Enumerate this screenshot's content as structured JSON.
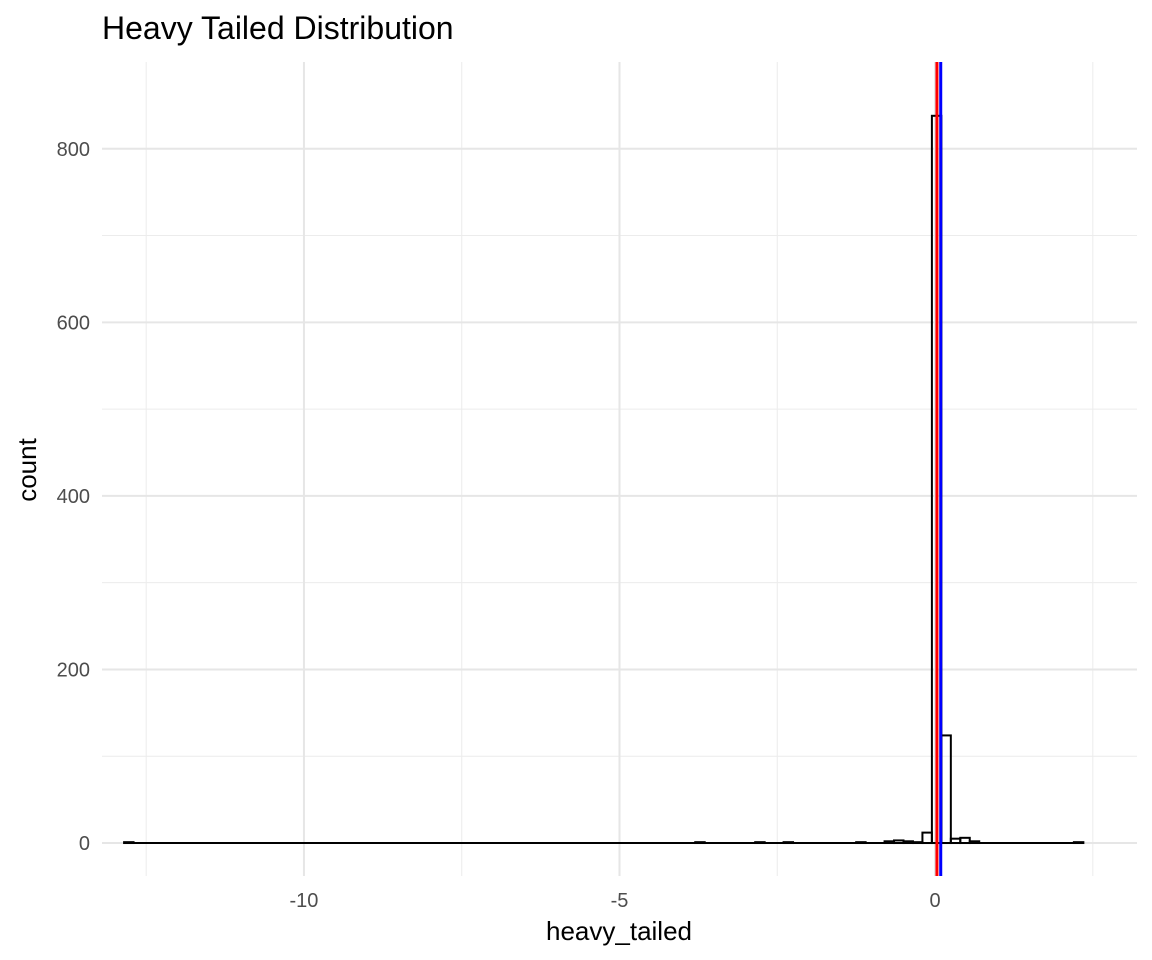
{
  "chart_data": {
    "type": "bar",
    "title": "Heavy Tailed Distribution",
    "xlabel": "heavy_tailed",
    "ylabel": "count",
    "xlim": [
      -13.2,
      3.2
    ],
    "ylim": [
      -38,
      900
    ],
    "x_ticks": [
      -10,
      -5,
      0
    ],
    "x_tick_labels": [
      "-10",
      "-5",
      "0"
    ],
    "x_minor_ticks": [
      -12.5,
      -7.5,
      -2.5,
      2.5
    ],
    "y_ticks": [
      0,
      200,
      400,
      600,
      800
    ],
    "y_tick_labels": [
      "0",
      "200",
      "400",
      "600",
      "800"
    ],
    "y_minor_ticks": [
      100,
      300,
      500,
      700
    ],
    "grid": true,
    "colors": {
      "mean_line": "#ff0000",
      "median_line": "#0000ff",
      "bar_outline": "#000000"
    },
    "reference_lines": [
      {
        "x": 0.09,
        "color": "#0000ff"
      },
      {
        "x": 0.03,
        "color": "#ff0000"
      }
    ],
    "bars": [
      {
        "x0": -12.85,
        "x1": -12.7,
        "count": 1
      },
      {
        "x0": -3.8,
        "x1": -3.65,
        "count": 1
      },
      {
        "x0": -2.85,
        "x1": -2.7,
        "count": 1
      },
      {
        "x0": -2.4,
        "x1": -2.25,
        "count": 1
      },
      {
        "x0": -1.25,
        "x1": -1.1,
        "count": 1
      },
      {
        "x0": -0.8,
        "x1": -0.65,
        "count": 2
      },
      {
        "x0": -0.65,
        "x1": -0.5,
        "count": 3
      },
      {
        "x0": -0.5,
        "x1": -0.35,
        "count": 2
      },
      {
        "x0": -0.35,
        "x1": -0.2,
        "count": 1
      },
      {
        "x0": -0.2,
        "x1": -0.05,
        "count": 12
      },
      {
        "x0": -0.05,
        "x1": 0.1,
        "count": 838
      },
      {
        "x0": 0.1,
        "x1": 0.25,
        "count": 124
      },
      {
        "x0": 0.25,
        "x1": 0.4,
        "count": 5
      },
      {
        "x0": 0.4,
        "x1": 0.55,
        "count": 6
      },
      {
        "x0": 0.55,
        "x1": 0.7,
        "count": 2
      },
      {
        "x0": 2.2,
        "x1": 2.35,
        "count": 1
      }
    ],
    "baseline_range": [
      -12.85,
      2.35
    ]
  }
}
